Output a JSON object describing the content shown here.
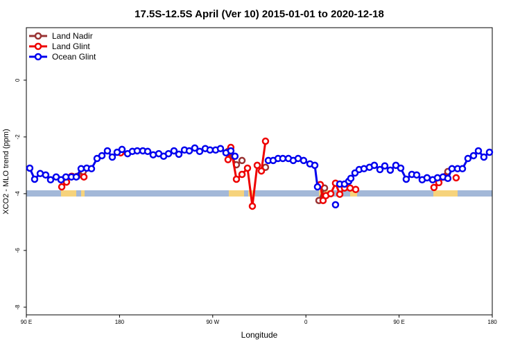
{
  "chart_data": {
    "type": "line",
    "title": "17.5S-12.5S April (Ver 10)   2015-01-01 to 2020-12-18",
    "x_label": "Longitude",
    "y_label": "XCO2 - MLO trend (ppm)",
    "xlim": [
      90,
      540
    ],
    "ylim": [
      -8.27,
      1.85
    ],
    "xticks": [
      {
        "value": 90,
        "label": "90 E"
      },
      180,
      {
        "value": 270,
        "label": "90 W"
      },
      {
        "value": 360,
        "label": "0"
      },
      {
        "value": 450,
        "label": "90 E"
      },
      {
        "value": 540,
        "label": "180"
      }
    ],
    "yticks": [
      0,
      -2,
      -4,
      -6,
      -8
    ],
    "legend": "top-left",
    "series": [
      {
        "name": "Land Nadir",
        "color": "#993333",
        "x": [
          134.2,
          138.9,
          144.9,
          null,
          284.8,
          292.9,
          298.3,
          null,
          321.0,
          null,
          372.6,
          378.0,
          null,
          487.8,
          497.1
        ],
        "values": [
          -3.39,
          -3.39,
          -3.22,
          null,
          -2.51,
          -2.98,
          -2.83,
          null,
          -3.07,
          null,
          -4.24,
          -3.8,
          null,
          -3.46,
          -3.22
        ]
      },
      {
        "name": "Land Glint",
        "color": "#ee0000",
        "x": [
          124.2,
          128.8,
          133.5,
          null,
          145.6,
          null,
          181.1,
          null,
          284.8,
          287.5,
          292.9,
          298.3,
          303.6,
          308.3,
          313.0,
          317.0,
          321.0,
          null,
          373.9,
          376.6,
          379.3,
          384.0,
          388.6,
          392.7,
          397.3,
          402.7,
          408.1,
          null,
          483.7,
          488.4,
          493.8,
          null,
          505.1
        ],
        "values": [
          -3.76,
          -3.59,
          -3.39,
          null,
          -3.41,
          null,
          -2.56,
          null,
          -2.8,
          -2.37,
          -3.49,
          -3.32,
          -3.1,
          -4.44,
          -3.0,
          -3.2,
          -2.15,
          null,
          -3.68,
          -4.24,
          -4.07,
          -4.0,
          -3.63,
          -4.02,
          -3.8,
          -3.8,
          -3.85,
          null,
          -3.78,
          -3.61,
          -3.41,
          null,
          -3.44
        ]
      },
      {
        "name": "Ocean Glint",
        "color": "#0000ee",
        "x": [
          93.3,
          98.0,
          103.4,
          108.7,
          113.4,
          118.8,
          123.5,
          128.2,
          133.5,
          138.2,
          142.9,
          148.3,
          152.9,
          158.3,
          163.0,
          168.3,
          173.0,
          177.7,
          182.4,
          187.8,
          192.4,
          197.1,
          202.5,
          207.2,
          212.5,
          217.9,
          222.6,
          227.3,
          232.6,
          237.3,
          242.7,
          247.4,
          252.7,
          257.4,
          262.8,
          267.4,
          272.8,
          277.5,
          282.8,
          287.5,
          291.5,
          null,
          323.7,
          328.4,
          333.1,
          337.7,
          343.1,
          347.8,
          352.5,
          357.8,
          363.9,
          368.6,
          371.2,
          null,
          388.6,
          null,
          392.7,
          397.3,
          401.4,
          403.4,
          407.4,
          411.4,
          416.1,
          421.4,
          426.1,
          431.5,
          436.2,
          441.5,
          446.9,
          451.6,
          456.9,
          462.3,
          467.0,
          472.3,
          477.0,
          482.4,
          487.1,
          492.4,
          497.1,
          501.1,
          506.5,
          511.2,
          516.5,
          521.9,
          526.6,
          531.9,
          537.3
        ],
        "values": [
          -3.1,
          -3.49,
          -3.29,
          -3.34,
          -3.51,
          -3.41,
          -3.51,
          -3.41,
          -3.41,
          -3.41,
          -3.12,
          -3.1,
          -3.12,
          -2.76,
          -2.66,
          -2.49,
          -2.71,
          -2.54,
          -2.44,
          -2.59,
          -2.51,
          -2.49,
          -2.49,
          -2.51,
          -2.63,
          -2.59,
          -2.68,
          -2.59,
          -2.49,
          -2.61,
          -2.46,
          -2.49,
          -2.39,
          -2.51,
          -2.41,
          -2.46,
          -2.46,
          -2.41,
          -2.56,
          -2.49,
          -2.68,
          null,
          -2.83,
          -2.83,
          -2.76,
          -2.76,
          -2.76,
          -2.83,
          -2.76,
          -2.83,
          -2.95,
          -3.0,
          -3.76,
          null,
          -4.39,
          null,
          -3.66,
          -3.66,
          -3.56,
          -3.46,
          -3.27,
          -3.15,
          -3.12,
          -3.07,
          -3.0,
          -3.15,
          -3.02,
          -3.17,
          -3.0,
          -3.1,
          -3.49,
          -3.32,
          -3.34,
          -3.51,
          -3.44,
          -3.51,
          -3.44,
          -3.41,
          -3.46,
          -3.12,
          -3.12,
          -3.12,
          -2.76,
          -2.66,
          -2.49,
          -2.71,
          -2.54
        ]
      }
    ]
  }
}
